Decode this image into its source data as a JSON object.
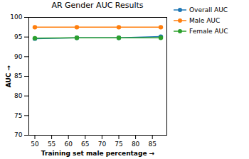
{
  "chart_data": {
    "type": "line",
    "title": "AR Gender AUC Results",
    "x_label": "Training set male percentage",
    "y_label": "AUC",
    "x": [
      50,
      62.5,
      75,
      87.5
    ],
    "series": [
      {
        "name": "Overall AUC",
        "color": "#1f77b4",
        "marker": "circle",
        "values": [
          94.6,
          94.8,
          94.8,
          95.1
        ]
      },
      {
        "name": "Male AUC",
        "color": "#ff7f0e",
        "marker": "circle",
        "values": [
          97.5,
          97.5,
          97.5,
          97.5
        ]
      },
      {
        "name": "Female AUC",
        "color": "#2ca02c",
        "marker": "circle",
        "values": [
          94.7,
          94.8,
          94.8,
          94.8
        ]
      }
    ],
    "xlim": [
      48.2,
      89.3
    ],
    "xticks": [
      50,
      55,
      60,
      65,
      70,
      75,
      80,
      85
    ],
    "ylim": [
      70,
      100
    ],
    "yticks": [
      70,
      75,
      80,
      85,
      90,
      95,
      100
    ],
    "grid": false,
    "legend": "outside right"
  }
}
